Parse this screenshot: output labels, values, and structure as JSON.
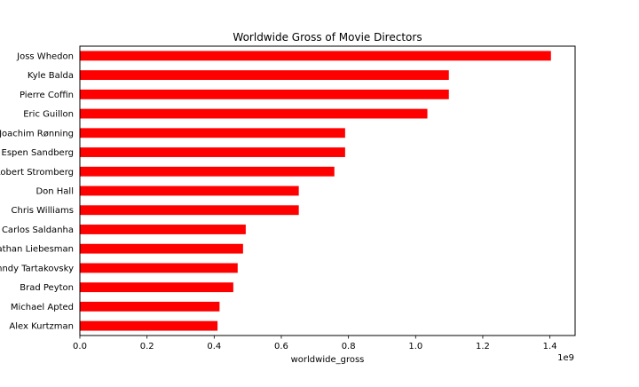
{
  "chart_data": {
    "type": "bar",
    "orientation": "horizontal",
    "title": "Worldwide Gross of Movie Directors",
    "xlabel": "worldwide_gross",
    "ylabel": "",
    "x_multiplier_label": "1e9",
    "xlim": [
      0,
      1.475
    ],
    "x_ticks": [
      {
        "value": 0.0,
        "label": "0.0"
      },
      {
        "value": 0.2,
        "label": "0.2"
      },
      {
        "value": 0.4,
        "label": "0.4"
      },
      {
        "value": 0.6,
        "label": "0.6"
      },
      {
        "value": 0.8,
        "label": "0.8"
      },
      {
        "value": 1.0,
        "label": "1.0"
      },
      {
        "value": 1.2,
        "label": "1.2"
      },
      {
        "value": 1.4,
        "label": "1.4"
      }
    ],
    "grid": false,
    "legend": "none",
    "bar_color": "#ff0000",
    "categories": [
      "Joss Whedon",
      "Kyle Balda",
      "Pierre Coffin",
      "Eric Guillon",
      "Joachim Rønning",
      "Espen Sandberg",
      "Robert Stromberg",
      "Don Hall",
      "Chris Williams",
      "Carlos Saldanha",
      "Jonathan Liebesman",
      "Genndy Tartakovsky",
      "Brad Peyton",
      "Michael Apted",
      "Alex Kurtzman"
    ],
    "values": [
      1.403,
      1.099,
      1.099,
      1.035,
      0.79,
      0.79,
      0.758,
      0.652,
      0.652,
      0.494,
      0.486,
      0.47,
      0.457,
      0.416,
      0.41
    ]
  }
}
